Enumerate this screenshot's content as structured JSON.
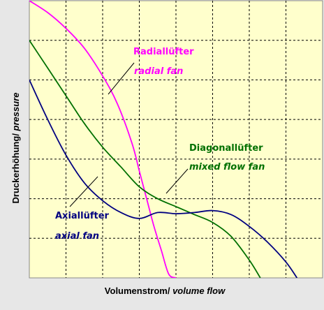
{
  "chart_data": {
    "type": "line",
    "xlabel_main": "Volumenstrom/",
    "xlabel_italic": " volume flow",
    "ylabel_main": "Druckerhöhung/",
    "ylabel_italic": " pressure",
    "xlim": [
      0,
      8
    ],
    "ylim": [
      0,
      7
    ],
    "grid": true,
    "series": [
      {
        "name": "Radiallüfter",
        "name_en": "radial fan",
        "color": "#ff00ff",
        "x": [
          0,
          0.5,
          1.0,
          1.5,
          2.0,
          2.4,
          2.8,
          3.0,
          3.2,
          3.4,
          3.6,
          3.8,
          4.0
        ],
        "y": [
          7.0,
          6.7,
          6.3,
          5.8,
          5.1,
          4.4,
          3.4,
          2.7,
          2.0,
          1.3,
          0.7,
          0.1,
          0.0
        ]
      },
      {
        "name": "Diagonallüfter",
        "name_en": "mixed flow fan",
        "color": "#007000",
        "x": [
          0,
          0.5,
          1.0,
          1.5,
          2.0,
          2.5,
          3.0,
          3.5,
          4.0,
          4.5,
          5.0,
          5.5,
          6.0,
          6.3
        ],
        "y": [
          6.0,
          5.3,
          4.6,
          3.9,
          3.3,
          2.8,
          2.3,
          2.0,
          1.8,
          1.6,
          1.4,
          1.05,
          0.45,
          0.0
        ]
      },
      {
        "name": "Axiallüfter",
        "name_en": "axial fan",
        "color": "#000080",
        "x": [
          0,
          0.5,
          1.0,
          1.5,
          2.0,
          2.5,
          3.0,
          3.5,
          4.0,
          4.5,
          5.0,
          5.5,
          6.0,
          6.5,
          7.0,
          7.3
        ],
        "y": [
          5.0,
          4.0,
          3.1,
          2.4,
          1.95,
          1.65,
          1.5,
          1.65,
          1.62,
          1.65,
          1.7,
          1.6,
          1.3,
          0.9,
          0.4,
          0.0
        ]
      }
    ]
  }
}
